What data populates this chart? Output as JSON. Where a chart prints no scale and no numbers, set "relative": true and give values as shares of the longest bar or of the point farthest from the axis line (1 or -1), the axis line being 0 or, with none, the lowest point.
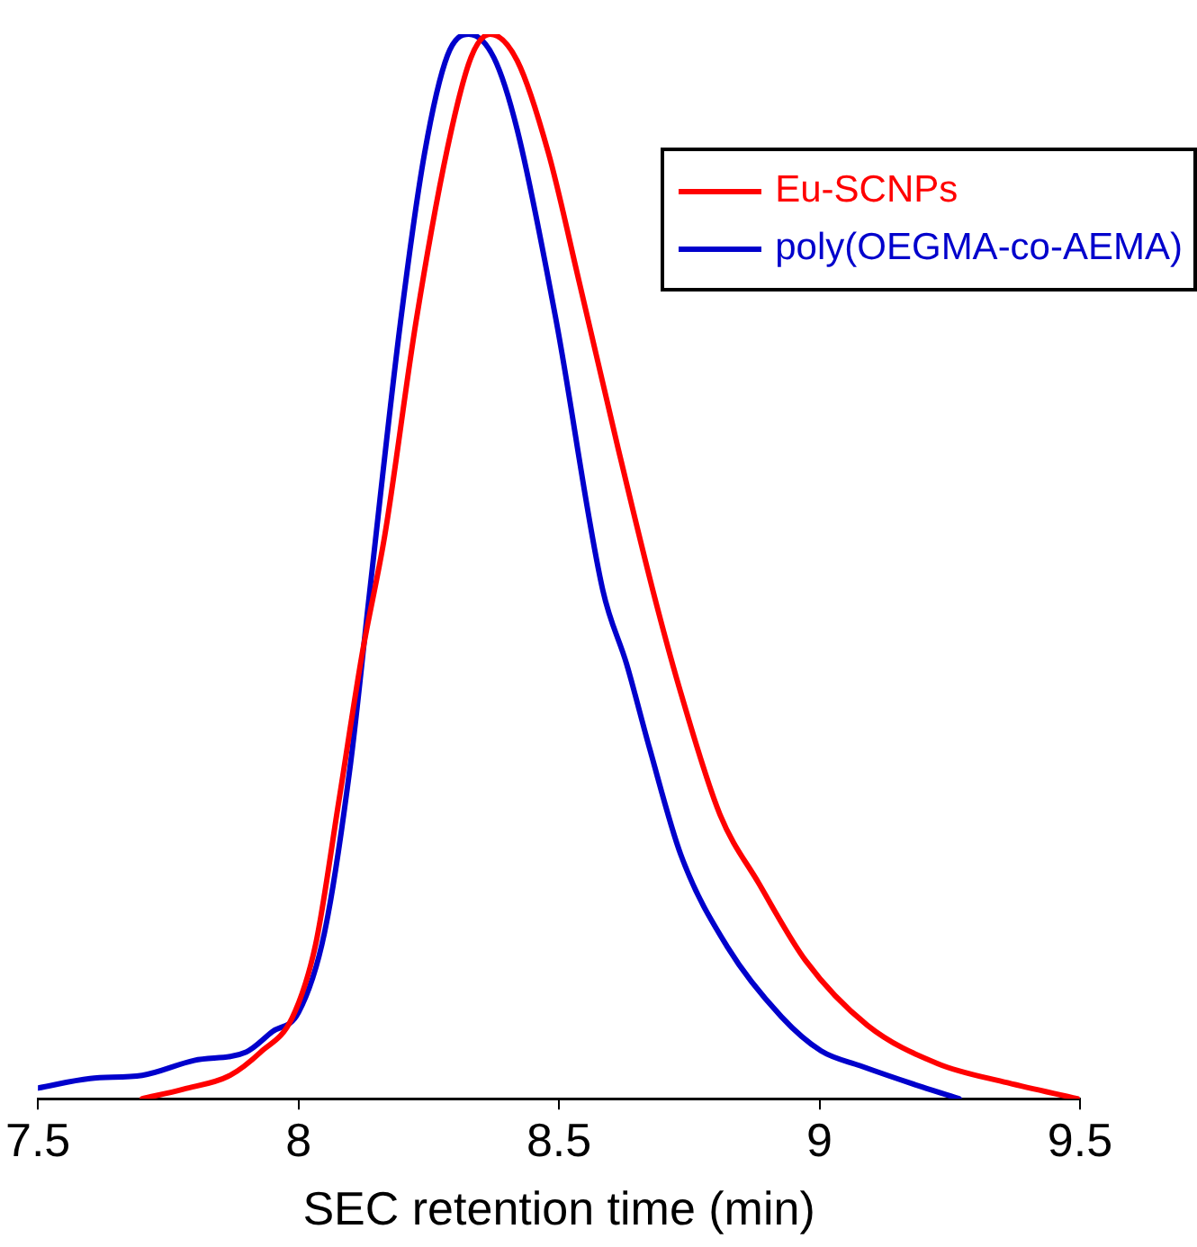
{
  "chart_data": {
    "type": "line",
    "xlabel": "SEC retention time (min)",
    "relative": true,
    "xlim": [
      7.5,
      9.5
    ],
    "xticks": [
      7.5,
      8,
      8.5,
      9,
      9.5
    ],
    "grid": false,
    "legend": "top right",
    "marker": "none",
    "line_style": "solid",
    "series": [
      {
        "name": "Eu-SCNPs",
        "color": "#ff0000",
        "x": [
          7.7,
          7.779,
          7.869,
          7.928,
          7.988,
          8.033,
          8.078,
          8.122,
          8.166,
          8.226,
          8.286,
          8.331,
          8.368,
          8.42,
          8.48,
          8.539,
          8.614,
          8.681,
          8.734,
          8.809,
          8.884,
          8.973,
          9.092,
          9.227,
          9.361,
          9.495
        ],
        "values": [
          0,
          0.009,
          0.022,
          0.044,
          0.076,
          0.145,
          0.281,
          0.417,
          0.53,
          0.731,
          0.893,
          0.978,
          1,
          0.975,
          0.888,
          0.767,
          0.61,
          0.476,
          0.381,
          0.267,
          0.202,
          0.13,
          0.069,
          0.033,
          0.015,
          0
        ]
      },
      {
        "name": "poly(OEGMA-co-AEMA)",
        "color": "#0000cc",
        "x": [
          7.5,
          7.6,
          7.7,
          7.8,
          7.9,
          7.95,
          8.0,
          8.05,
          8.1,
          8.136,
          8.196,
          8.242,
          8.286,
          8.327,
          8.375,
          8.42,
          8.495,
          8.584,
          8.63,
          8.674,
          8.734,
          8.824,
          8.927,
          9.003,
          9.078,
          9.197,
          9.268
        ],
        "values": [
          0.01,
          0.019,
          0.022,
          0.036,
          0.044,
          0.063,
          0.081,
          0.156,
          0.315,
          0.473,
          0.73,
          0.888,
          0.98,
          1,
          0.978,
          0.91,
          0.73,
          0.478,
          0.408,
          0.329,
          0.229,
          0.142,
          0.077,
          0.045,
          0.031,
          0.011,
          0
        ]
      }
    ]
  }
}
